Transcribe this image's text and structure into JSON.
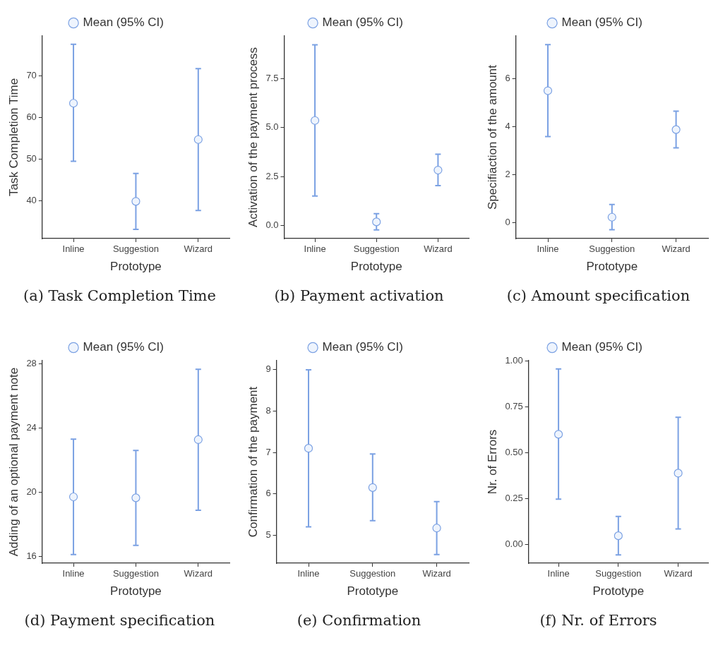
{
  "chart_data": [
    {
      "type": "scatter",
      "categories": [
        "Inline",
        "Suggestion",
        "Wizard"
      ],
      "xlabel": "Prototype",
      "ylabel": "Task Completion Time",
      "ylim": [
        31,
        79.5
      ],
      "yticks": [
        40,
        50,
        60,
        70
      ],
      "legend": "top",
      "marker": "circle",
      "grid": false,
      "annotations": [
        "(a) Task Completion Time"
      ],
      "series": [
        {
          "name": "Mean (95% CI)",
          "color": "#7ba1e3",
          "values": [
            63.4,
            39.9,
            54.7
          ],
          "errors": [
            [
              49.5,
              77.5
            ],
            [
              33.2,
              46.6
            ],
            [
              37.7,
              71.7
            ]
          ]
        }
      ]
    },
    {
      "type": "scatter",
      "categories": [
        "Inline",
        "Suggestion",
        "Wizard"
      ],
      "xlabel": "Prototype",
      "ylabel": "Activation of the payment process",
      "ylim": [
        -0.66,
        9.67
      ],
      "yticks": [
        {
          "value": 0,
          "label": "0.0"
        },
        {
          "value": 2.5,
          "label": "2.5"
        },
        {
          "value": 5,
          "label": "5.0"
        },
        {
          "value": 7.5,
          "label": "7.5"
        }
      ],
      "legend": "top",
      "marker": "circle",
      "grid": false,
      "annotations": [
        "(b) Payment activation"
      ],
      "series": [
        {
          "name": "Mean (95% CI)",
          "color": "#7ba1e3",
          "values": [
            5.36,
            0.19,
            2.83
          ],
          "errors": [
            [
              1.51,
              9.22
            ],
            [
              -0.22,
              0.61
            ],
            [
              2.04,
              3.64
            ]
          ]
        }
      ]
    },
    {
      "type": "scatter",
      "categories": [
        "Inline",
        "Suggestion",
        "Wizard"
      ],
      "xlabel": "Prototype",
      "ylabel": "Specifiaction of the amount",
      "ylim": [
        -0.65,
        7.79
      ],
      "yticks": [
        0,
        2,
        4,
        6
      ],
      "legend": "top",
      "marker": "circle",
      "grid": false,
      "annotations": [
        "(c) Amount specification"
      ],
      "series": [
        {
          "name": "Mean (95% CI)",
          "color": "#7ba1e3",
          "values": [
            5.51,
            0.24,
            3.89
          ],
          "errors": [
            [
              3.6,
              7.43
            ],
            [
              -0.28,
              0.77
            ],
            [
              3.13,
              4.66
            ]
          ]
        }
      ]
    },
    {
      "type": "scatter",
      "categories": [
        "Inline",
        "Suggestion",
        "Wizard"
      ],
      "xlabel": "Prototype",
      "ylabel": "Adding of an optional payment note",
      "ylim": [
        15.56,
        28.2
      ],
      "yticks": [
        16,
        20,
        24,
        28
      ],
      "legend": "top",
      "marker": "circle",
      "grid": false,
      "annotations": [
        "(d) Payment specification"
      ],
      "series": [
        {
          "name": "Mean (95% CI)",
          "color": "#7ba1e3",
          "values": [
            19.7,
            19.64,
            23.27
          ],
          "errors": [
            [
              16.1,
              23.3
            ],
            [
              16.67,
              22.6
            ],
            [
              18.86,
              27.66
            ]
          ]
        }
      ]
    },
    {
      "type": "scatter",
      "categories": [
        "Inline",
        "Suggestion",
        "Wizard"
      ],
      "xlabel": "Prototype",
      "ylabel": "Confirmation of the payment",
      "ylim": [
        4.32,
        9.22
      ],
      "yticks": [
        5,
        6,
        7,
        8,
        9
      ],
      "legend": "top",
      "marker": "circle",
      "grid": false,
      "annotations": [
        "(e) Confirmation"
      ],
      "series": [
        {
          "name": "Mean (95% CI)",
          "color": "#7ba1e3",
          "values": [
            7.1,
            6.15,
            5.17
          ],
          "errors": [
            [
              5.2,
              9.0
            ],
            [
              5.35,
              6.96
            ],
            [
              4.53,
              5.81
            ]
          ]
        }
      ]
    },
    {
      "type": "scatter",
      "categories": [
        "Inline",
        "Suggestion",
        "Wizard"
      ],
      "xlabel": "Prototype",
      "ylabel": "Nr. of Errors",
      "ylim": [
        -0.1,
        1.0
      ],
      "yticks": [
        {
          "value": 0,
          "label": "0.00"
        },
        {
          "value": 0.25,
          "label": "0.25"
        },
        {
          "value": 0.5,
          "label": "0.50"
        },
        {
          "value": 0.75,
          "label": "0.75"
        },
        {
          "value": 1,
          "label": "1.00"
        }
      ],
      "legend": "top",
      "marker": "circle",
      "grid": false,
      "annotations": [
        "(f) Nr. of Errors"
      ],
      "series": [
        {
          "name": "Mean (95% CI)",
          "color": "#7ba1e3",
          "values": [
            0.6,
            0.049,
            0.389
          ],
          "errors": [
            [
              0.248,
              0.955
            ],
            [
              -0.055,
              0.154
            ],
            [
              0.086,
              0.692
            ]
          ]
        }
      ]
    }
  ]
}
